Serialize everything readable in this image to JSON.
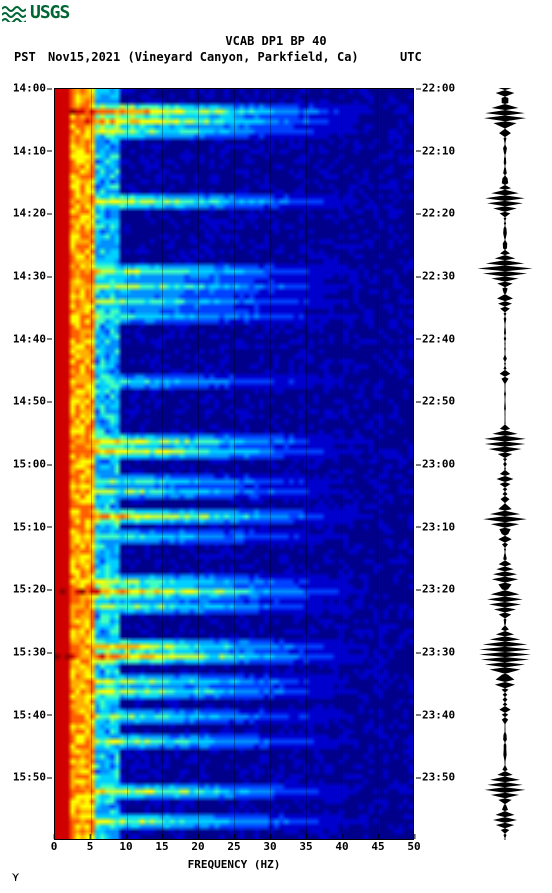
{
  "logo_text": "USGS",
  "logo_color": "#006633",
  "title": "VCAB DP1 BP 40",
  "timezone_left": "PST",
  "date_station": "Nov15,2021 (Vineyard Canyon, Parkfield, Ca)",
  "timezone_right": "UTC",
  "x_axis": {
    "label": "FREQUENCY (HZ)",
    "min": 0,
    "max": 50,
    "ticks": [
      0,
      5,
      10,
      15,
      20,
      25,
      30,
      35,
      40,
      45,
      50
    ]
  },
  "y_axis_left_ticks": [
    "14:00",
    "14:10",
    "14:20",
    "14:30",
    "14:40",
    "14:50",
    "15:00",
    "15:10",
    "15:20",
    "15:30",
    "15:40",
    "15:50"
  ],
  "y_axis_right_ticks": [
    "22:00",
    "22:10",
    "22:20",
    "22:30",
    "22:40",
    "22:50",
    "23:00",
    "23:10",
    "23:20",
    "23:30",
    "23:40",
    "23:50"
  ],
  "duration_minutes": 120,
  "spectrogram": {
    "cols": 72,
    "rows": 150,
    "palette": {
      "0": "#00008b",
      "1": "#0000cd",
      "2": "#0040ff",
      "3": "#0090ff",
      "4": "#00d0ff",
      "5": "#40ffc0",
      "6": "#c0ff40",
      "7": "#ffff00",
      "8": "#ffb000",
      "9": "#ff6000",
      "10": "#d00000",
      "11": "#800000"
    },
    "event_rows": [
      4,
      6,
      8,
      22,
      36,
      39,
      42,
      45,
      58,
      70,
      72,
      78,
      80,
      85,
      89,
      98,
      100,
      103,
      111,
      113,
      118,
      120,
      125,
      130,
      140,
      146
    ],
    "event_strengths": [
      1.0,
      0.9,
      0.7,
      0.8,
      0.75,
      0.7,
      0.65,
      0.6,
      0.55,
      0.8,
      0.85,
      0.6,
      0.65,
      0.9,
      0.6,
      0.7,
      0.95,
      0.7,
      0.85,
      0.95,
      0.7,
      0.75,
      0.65,
      0.7,
      0.8,
      0.75
    ]
  },
  "seismogram": {
    "baseline_noise": 2,
    "events": [
      {
        "t": 4,
        "amp": 30,
        "dur": 4
      },
      {
        "t": 8,
        "amp": 12,
        "dur": 2
      },
      {
        "t": 22,
        "amp": 22,
        "dur": 3
      },
      {
        "t": 36,
        "amp": 26,
        "dur": 3
      },
      {
        "t": 42,
        "amp": 14,
        "dur": 2
      },
      {
        "t": 58,
        "amp": 10,
        "dur": 2
      },
      {
        "t": 70,
        "amp": 24,
        "dur": 3
      },
      {
        "t": 78,
        "amp": 8,
        "dur": 2
      },
      {
        "t": 85,
        "amp": 28,
        "dur": 3
      },
      {
        "t": 89,
        "amp": 10,
        "dur": 2
      },
      {
        "t": 100,
        "amp": 30,
        "dur": 4
      },
      {
        "t": 111,
        "amp": 20,
        "dur": 3
      },
      {
        "t": 113,
        "amp": 30,
        "dur": 4
      },
      {
        "t": 118,
        "amp": 14,
        "dur": 2
      },
      {
        "t": 125,
        "amp": 8,
        "dur": 2
      },
      {
        "t": 140,
        "amp": 22,
        "dur": 3
      },
      {
        "t": 146,
        "amp": 12,
        "dur": 2
      }
    ]
  },
  "footer": "⋎"
}
